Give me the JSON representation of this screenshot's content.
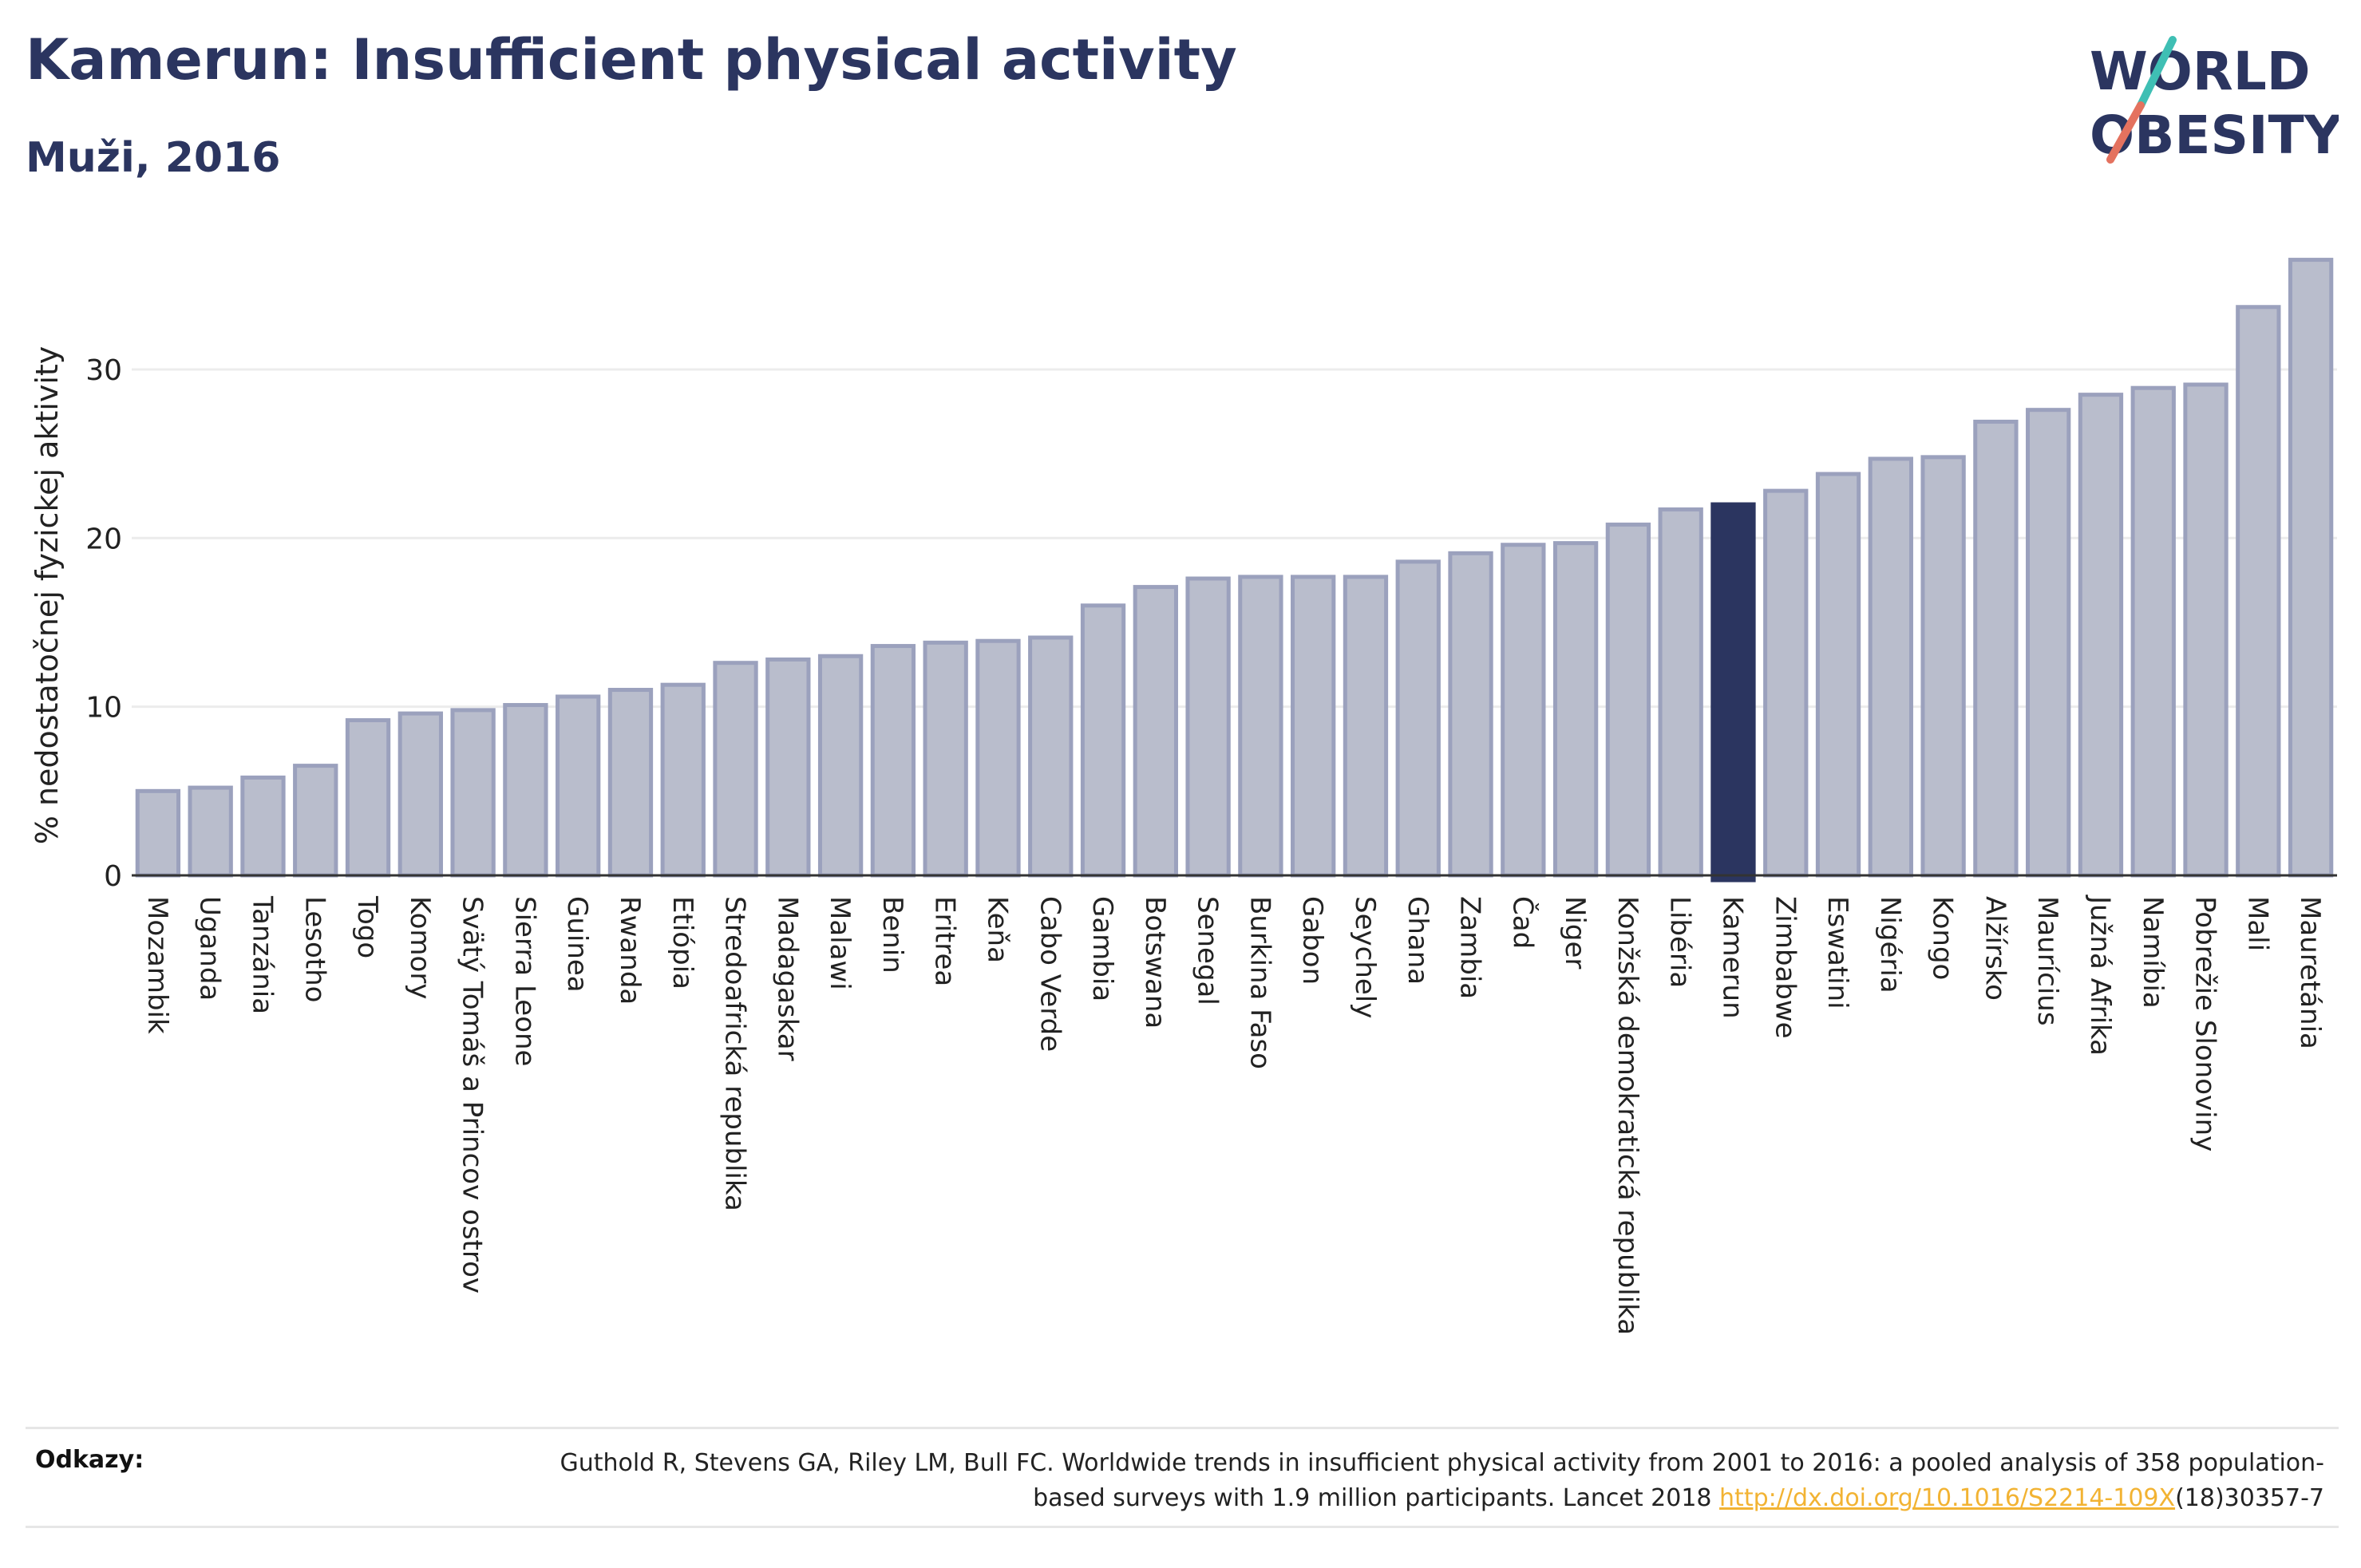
{
  "title": "Kamerun: Insufficient physical activity",
  "subtitle": "Muži, 2016",
  "logo": {
    "line1": "WORLD",
    "line2": "OBESITY",
    "accent_colors": [
      "#3fbfb4",
      "#e4725f"
    ],
    "text_color": "#2b3560"
  },
  "colors": {
    "bar": "#b9bdcc",
    "bar_border": "#9ba1bd",
    "highlight": "#2b3560",
    "axis": "#333333",
    "grid": "#ececec"
  },
  "chart_data": {
    "type": "bar",
    "title": "",
    "xlabel": "",
    "ylabel": "% nedostatočnej fyzickej aktivity",
    "ylim": [
      0,
      37
    ],
    "yticks": [
      0,
      10,
      20,
      30
    ],
    "grid": true,
    "highlight": "Kamerun",
    "categories": [
      "Mozambik",
      "Uganda",
      "Tanzánia",
      "Lesotho",
      "Togo",
      "Komory",
      "Svätý Tomáš a Princov ostrov",
      "Sierra Leone",
      "Guinea",
      "Rwanda",
      "Etiópia",
      "Stredoafrická republika",
      "Madagaskar",
      "Malawi",
      "Benin",
      "Eritrea",
      "Keňa",
      "Cabo Verde",
      "Gambia",
      "Botswana",
      "Senegal",
      "Burkina Faso",
      "Gabon",
      "Seychely",
      "Ghana",
      "Zambia",
      "Čad",
      "Niger",
      "Konžská demokratická republika",
      "Libéria",
      "Kamerun",
      "Zimbabwe",
      "Eswatini",
      "Nigéria",
      "Kongo",
      "Alžírsko",
      "Maurícius",
      "Južná Afrika",
      "Namíbia",
      "Pobrežie Slonoviny",
      "Mali",
      "Mauretánia"
    ],
    "values": [
      5.0,
      5.2,
      5.8,
      6.5,
      9.2,
      9.6,
      9.8,
      10.1,
      10.6,
      11.0,
      11.3,
      12.6,
      12.8,
      13.0,
      13.6,
      13.8,
      13.9,
      14.1,
      16.0,
      17.1,
      17.6,
      17.7,
      17.7,
      17.7,
      18.6,
      19.1,
      19.6,
      19.7,
      20.8,
      21.7,
      22.0,
      22.8,
      23.8,
      24.7,
      24.8,
      26.9,
      27.6,
      28.5,
      28.9,
      29.1,
      33.7,
      36.5
    ]
  },
  "references": {
    "label": "Odkazy:",
    "text": "Guthold R, Stevens GA, Riley LM, Bull FC. Worldwide trends in insufficient physical activity from 2001 to 2016: a pooled analysis of 358 population-based surveys with 1.9 million participants. Lancet 2018 ",
    "link_text": "http://dx.doi.org/10.1016/S2214-109X",
    "suffix": "(18)30357-7"
  }
}
